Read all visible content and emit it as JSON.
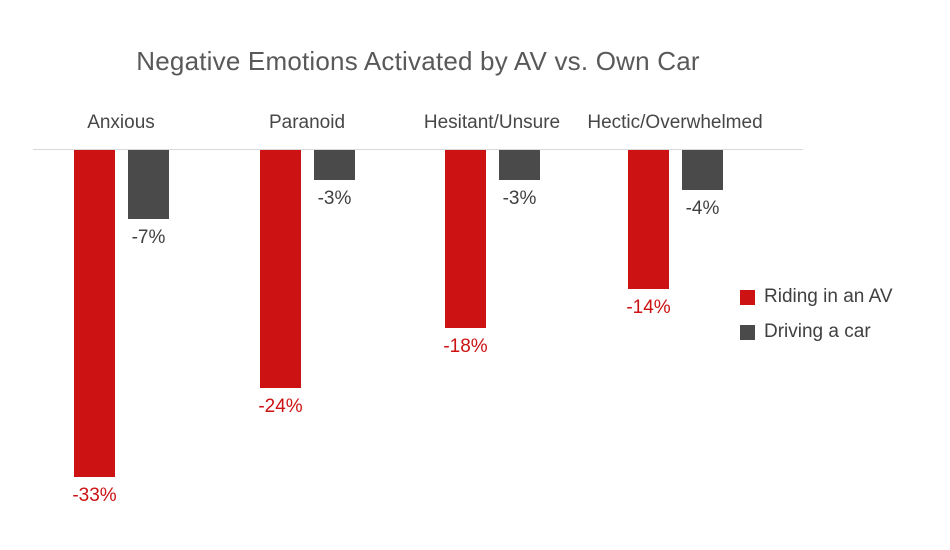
{
  "chart_data": {
    "type": "bar",
    "title": "Negative Emotions Activated by AV vs. Own Car",
    "categories": [
      "Anxious",
      "Paranoid",
      "Hesitant/Unsure",
      "Hectic/Overwhelmed"
    ],
    "series": [
      {
        "name": "Riding in an AV",
        "color": "#cc1212",
        "values": [
          -33,
          -24,
          -18,
          -14
        ],
        "labels": [
          "-33%",
          "-24%",
          "-18%",
          "-14%"
        ]
      },
      {
        "name": "Driving a car",
        "color": "#4a4a4a",
        "values": [
          -7,
          -3,
          -3,
          -4
        ],
        "labels": [
          "-7%",
          "-3%",
          "-3%",
          "-4%"
        ]
      }
    ],
    "ylim": [
      -35,
      0
    ],
    "xlabel": "",
    "ylabel": "",
    "grid": false,
    "axis_line_color": "#d9d9d9",
    "legend_position": "right",
    "label_color_series_1": "#cc1212",
    "label_color_series_2": "#404040"
  }
}
